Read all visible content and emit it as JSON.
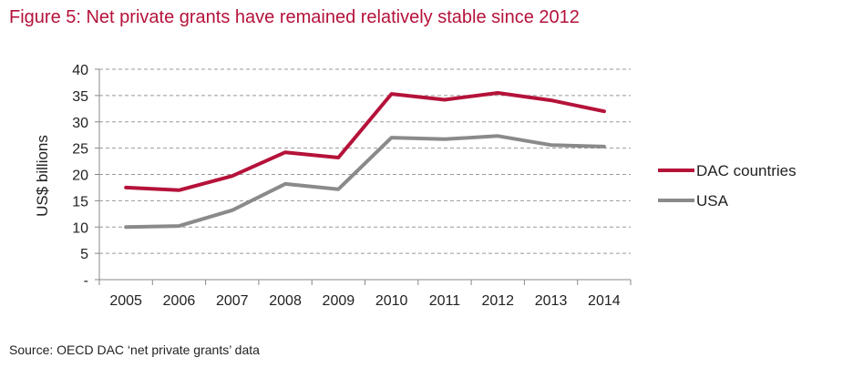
{
  "title": "Figure 5: Net private grants have remained relatively stable since 2012",
  "source": "Source: OECD DAC ‘net private grants’ data",
  "colors": {
    "title": "#b5123a",
    "dac": "#b5123a",
    "usa": "#8a8a8a",
    "grid": "#999999"
  },
  "chart_data": {
    "type": "line",
    "title": "Figure 5: Net private grants have remained relatively stable since 2012",
    "xlabel": "",
    "ylabel": "US$ billions",
    "categories": [
      "2005",
      "2006",
      "2007",
      "2008",
      "2009",
      "2010",
      "2011",
      "2012",
      "2013",
      "2014"
    ],
    "y_ticks": [
      0,
      5,
      10,
      15,
      20,
      25,
      30,
      35,
      40
    ],
    "y_tick_labels": [
      "-",
      "5",
      "10",
      "15",
      "20",
      "25",
      "30",
      "35",
      "40"
    ],
    "ylim": [
      0,
      40
    ],
    "grid": "horizontal dashed",
    "legend_position": "right",
    "series": [
      {
        "name": "DAC countries",
        "color": "#b5123a",
        "values": [
          17.5,
          17.0,
          19.7,
          24.2,
          23.2,
          35.3,
          34.2,
          35.5,
          34.1,
          32.0
        ]
      },
      {
        "name": "USA",
        "color": "#8a8a8a",
        "values": [
          10.0,
          10.2,
          13.2,
          18.2,
          17.2,
          27.0,
          26.7,
          27.3,
          25.6,
          25.3
        ]
      }
    ]
  }
}
